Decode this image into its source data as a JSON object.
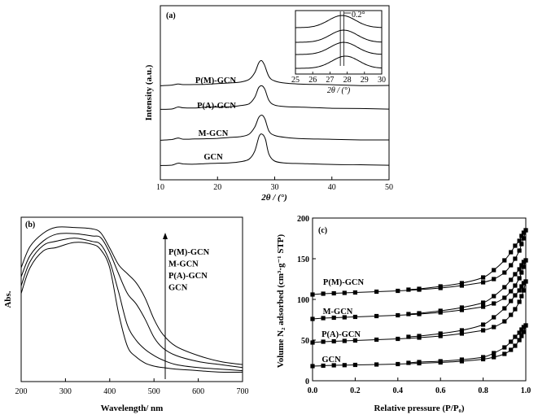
{
  "chart_data": [
    {
      "panel": "(a)",
      "type": "line",
      "xlabel": "2θ / (°)",
      "ylabel": "Intensity (a.u.)",
      "xlim": [
        10,
        50
      ],
      "xticks": [
        10,
        20,
        30,
        40,
        50
      ],
      "series": [
        {
          "name": "P(M)-GCN",
          "peak_x": 27.7,
          "x": [
            10,
            12,
            13.1,
            14,
            16,
            18,
            20,
            22,
            24,
            25.5,
            26.5,
            27.2,
            27.7,
            28.2,
            29,
            30,
            32,
            35,
            40,
            45,
            50
          ],
          "y": [
            0.08,
            0.1,
            0.16,
            0.13,
            0.13,
            0.15,
            0.16,
            0.18,
            0.22,
            0.3,
            0.55,
            0.92,
            1.0,
            0.85,
            0.42,
            0.25,
            0.18,
            0.15,
            0.12,
            0.1,
            0.09
          ]
        },
        {
          "name": "P(A)-GCN",
          "peak_x": 27.8,
          "x": [
            10,
            12,
            13.1,
            14,
            16,
            18,
            20,
            22,
            24,
            25.5,
            26.5,
            27.2,
            27.8,
            28.3,
            29,
            30,
            32,
            35,
            40,
            45,
            50
          ],
          "y": [
            0.08,
            0.1,
            0.16,
            0.13,
            0.13,
            0.15,
            0.16,
            0.18,
            0.22,
            0.3,
            0.55,
            0.92,
            1.0,
            0.85,
            0.42,
            0.25,
            0.18,
            0.15,
            0.12,
            0.1,
            0.09
          ]
        },
        {
          "name": "M-GCN",
          "peak_x": 27.8,
          "x": [
            10,
            12,
            13.1,
            14,
            16,
            18,
            20,
            22,
            24,
            25.5,
            26.5,
            27.2,
            27.8,
            28.3,
            29,
            30,
            32,
            35,
            40,
            45,
            50
          ],
          "y": [
            0.08,
            0.1,
            0.17,
            0.13,
            0.13,
            0.15,
            0.16,
            0.18,
            0.22,
            0.3,
            0.55,
            0.92,
            1.0,
            0.85,
            0.42,
            0.25,
            0.18,
            0.15,
            0.12,
            0.1,
            0.09
          ]
        },
        {
          "name": "GCN",
          "peak_x": 27.9,
          "x": [
            10,
            12,
            13.1,
            14,
            16,
            18,
            20,
            22,
            24,
            25.5,
            26.5,
            27.3,
            27.9,
            28.4,
            29,
            30,
            32,
            35,
            40,
            45,
            50
          ],
          "y": [
            0.06,
            0.08,
            0.13,
            0.1,
            0.1,
            0.11,
            0.12,
            0.14,
            0.17,
            0.25,
            0.5,
            0.95,
            1.0,
            0.85,
            0.4,
            0.2,
            0.14,
            0.11,
            0.09,
            0.08,
            0.07
          ]
        }
      ],
      "inset": {
        "xlabel": "2θ / (°)",
        "xlim": [
          25,
          30
        ],
        "xticks": [
          25,
          26,
          27,
          28,
          29,
          30
        ],
        "annotation": "0.2°",
        "peak_x": [
          27.6,
          27.8
        ]
      }
    },
    {
      "panel": "(b)",
      "type": "line",
      "xlabel": "Wavelength/ nm",
      "ylabel": "Abs.",
      "xlim": [
        200,
        700
      ],
      "xticks": [
        200,
        300,
        400,
        500,
        600,
        700
      ],
      "arrow_labels": [
        "P(M)-GCN",
        "M-GCN",
        "P(A)-GCN",
        "GCN"
      ],
      "series": [
        {
          "name": "P(M)-GCN",
          "x": [
            200,
            220,
            250,
            280,
            320,
            360,
            380,
            400,
            420,
            440,
            460,
            480,
            500,
            520,
            550,
            600,
            650,
            700
          ],
          "y": [
            0.72,
            0.86,
            0.96,
            0.98,
            0.99,
            0.99,
            0.94,
            0.85,
            0.74,
            0.68,
            0.62,
            0.52,
            0.38,
            0.28,
            0.2,
            0.14,
            0.1,
            0.08
          ]
        },
        {
          "name": "M-GCN",
          "x": [
            200,
            220,
            250,
            280,
            320,
            360,
            380,
            400,
            420,
            440,
            460,
            480,
            500,
            520,
            550,
            600,
            650,
            700
          ],
          "y": [
            0.66,
            0.8,
            0.9,
            0.93,
            0.94,
            0.95,
            0.92,
            0.82,
            0.68,
            0.55,
            0.48,
            0.38,
            0.26,
            0.19,
            0.14,
            0.1,
            0.08,
            0.06
          ]
        },
        {
          "name": "P(A)-GCN",
          "x": [
            200,
            220,
            250,
            280,
            320,
            360,
            380,
            400,
            420,
            440,
            460,
            480,
            500,
            520,
            550,
            600,
            650,
            700
          ],
          "y": [
            0.6,
            0.76,
            0.86,
            0.89,
            0.9,
            0.91,
            0.88,
            0.76,
            0.56,
            0.34,
            0.24,
            0.18,
            0.14,
            0.11,
            0.08,
            0.06,
            0.05,
            0.04
          ]
        },
        {
          "name": "GCN",
          "x": [
            200,
            220,
            250,
            280,
            320,
            360,
            380,
            400,
            420,
            440,
            460,
            480,
            500,
            520,
            550,
            600,
            650,
            700
          ],
          "y": [
            0.55,
            0.72,
            0.82,
            0.86,
            0.87,
            0.88,
            0.84,
            0.72,
            0.42,
            0.2,
            0.13,
            0.09,
            0.07,
            0.06,
            0.05,
            0.04,
            0.03,
            0.03
          ]
        }
      ]
    },
    {
      "panel": "(c)",
      "type": "scatter",
      "xlabel": "Relative pressure (P/P₀)",
      "ylabel": "Volume N₂ adsorbed (cm³·g⁻¹ STP)",
      "xlim": [
        0.0,
        1.0
      ],
      "ylim": [
        0,
        200
      ],
      "xticks": [
        0.0,
        0.2,
        0.4,
        0.6,
        0.8,
        1.0
      ],
      "yticks": [
        0,
        50,
        100,
        150,
        200
      ],
      "series": [
        {
          "name": "P(M)-GCN",
          "adsorption_x": [
            0.0,
            0.05,
            0.1,
            0.15,
            0.2,
            0.3,
            0.4,
            0.5,
            0.6,
            0.7,
            0.8,
            0.85,
            0.9,
            0.93,
            0.95,
            0.97,
            0.98,
            0.99,
            1.0
          ],
          "adsorption_y": [
            106,
            107,
            107.5,
            108,
            108.5,
            109.5,
            110.5,
            112,
            114,
            117,
            121,
            125,
            133,
            142,
            150,
            160,
            168,
            175,
            185
          ],
          "desorption_x": [
            1.0,
            0.99,
            0.98,
            0.97,
            0.95,
            0.93,
            0.9,
            0.85,
            0.8,
            0.7,
            0.6,
            0.5,
            0.45
          ],
          "desorption_y": [
            185,
            182,
            178,
            172,
            166,
            158,
            148,
            136,
            127,
            120,
            116,
            113,
            112
          ]
        },
        {
          "name": "M-GCN",
          "adsorption_x": [
            0.0,
            0.05,
            0.1,
            0.15,
            0.2,
            0.3,
            0.4,
            0.5,
            0.6,
            0.7,
            0.8,
            0.85,
            0.9,
            0.93,
            0.95,
            0.97,
            0.98,
            0.99,
            1.0
          ],
          "adsorption_y": [
            76,
            77,
            77.5,
            78,
            78.5,
            79.5,
            80.5,
            82,
            84,
            87,
            91,
            95,
            102,
            110,
            117,
            126,
            133,
            140,
            148
          ],
          "desorption_x": [
            1.0,
            0.99,
            0.98,
            0.97,
            0.95,
            0.93,
            0.9,
            0.85,
            0.8,
            0.7,
            0.6,
            0.5,
            0.45
          ],
          "desorption_y": [
            148,
            146,
            142,
            137,
            131,
            124,
            115,
            104,
            96,
            90,
            86,
            83,
            82
          ]
        },
        {
          "name": "P(A)-GCN",
          "adsorption_x": [
            0.0,
            0.05,
            0.1,
            0.15,
            0.2,
            0.3,
            0.4,
            0.5,
            0.6,
            0.7,
            0.8,
            0.85,
            0.9,
            0.93,
            0.95,
            0.97,
            0.98,
            0.99,
            1.0
          ],
          "adsorption_y": [
            47,
            48,
            48.5,
            49,
            49.5,
            50.5,
            51.5,
            53,
            55,
            58,
            62,
            66,
            73,
            81,
            88,
            97,
            104,
            111,
            122
          ],
          "desorption_x": [
            1.0,
            0.99,
            0.98,
            0.97,
            0.95,
            0.93,
            0.9,
            0.85,
            0.8,
            0.7,
            0.6,
            0.5,
            0.45
          ],
          "desorption_y": [
            122,
            120,
            116,
            111,
            105,
            98,
            89,
            78,
            69,
            62,
            58,
            55,
            54
          ]
        },
        {
          "name": "GCN",
          "adsorption_x": [
            0.0,
            0.05,
            0.1,
            0.15,
            0.2,
            0.3,
            0.4,
            0.5,
            0.6,
            0.7,
            0.8,
            0.85,
            0.9,
            0.93,
            0.95,
            0.97,
            0.98,
            0.99,
            1.0
          ],
          "adsorption_y": [
            18,
            18.5,
            19,
            19.2,
            19.5,
            20,
            20.5,
            21.5,
            22.5,
            24,
            26.5,
            29,
            33,
            38,
            43,
            50,
            55,
            60,
            68
          ],
          "desorption_x": [
            1.0,
            0.99,
            0.98,
            0.97,
            0.95,
            0.93,
            0.9,
            0.85,
            0.8,
            0.7,
            0.6,
            0.5,
            0.45
          ],
          "desorption_y": [
            68,
            66,
            63,
            59,
            54,
            48,
            41,
            34,
            29,
            26,
            24,
            23,
            22
          ]
        }
      ]
    }
  ]
}
